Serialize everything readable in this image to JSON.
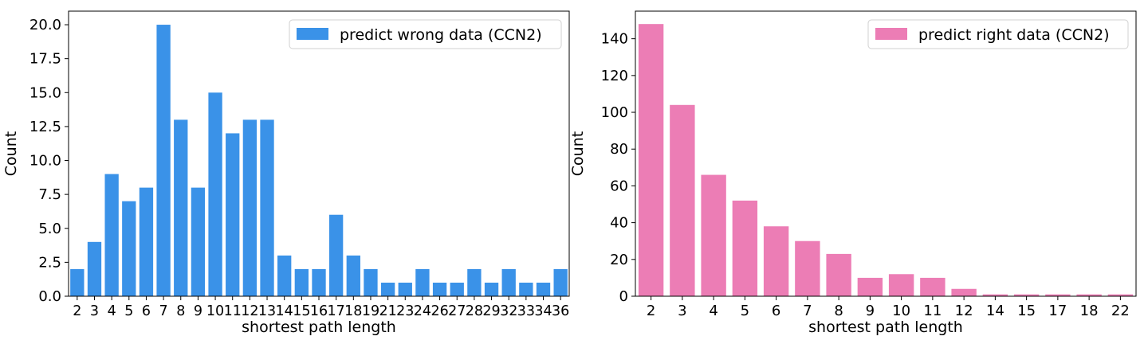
{
  "chart_data": [
    {
      "type": "bar",
      "xlabel": "shortest path length",
      "ylabel": "Count",
      "legend": {
        "label": "predict wrong data (CCN2)",
        "placement": "top-right"
      },
      "color": "#3a92e8",
      "categories": [
        "2",
        "3",
        "4",
        "5",
        "6",
        "7",
        "8",
        "9",
        "10",
        "11",
        "12",
        "13",
        "14",
        "15",
        "16",
        "17",
        "18",
        "19",
        "21",
        "23",
        "24",
        "26",
        "27",
        "28",
        "29",
        "32",
        "33",
        "34",
        "36"
      ],
      "values": [
        2,
        4,
        9,
        7,
        8,
        20,
        13,
        8,
        15,
        12,
        13,
        13,
        3,
        2,
        2,
        6,
        3,
        2,
        1,
        1,
        2,
        1,
        1,
        2,
        1,
        2,
        1,
        1,
        2
      ],
      "ylim": [
        0,
        21
      ],
      "yticks": [
        "0.0",
        "2.5",
        "5.0",
        "7.5",
        "10.0",
        "12.5",
        "15.0",
        "17.5",
        "20.0"
      ],
      "grid": false
    },
    {
      "type": "bar",
      "xlabel": "shortest path length",
      "ylabel": "Count",
      "legend": {
        "label": "predict right data (CCN2)",
        "placement": "top-right"
      },
      "color": "#ec7db5",
      "categories": [
        "2",
        "3",
        "4",
        "5",
        "6",
        "7",
        "8",
        "9",
        "10",
        "11",
        "12",
        "14",
        "15",
        "17",
        "18",
        "22"
      ],
      "values": [
        148,
        104,
        66,
        52,
        38,
        30,
        23,
        10,
        12,
        10,
        4,
        1,
        1,
        1,
        1,
        1
      ],
      "ylim": [
        0,
        155
      ],
      "yticks": [
        "0",
        "20",
        "40",
        "60",
        "80",
        "100",
        "120",
        "140"
      ],
      "grid": false
    }
  ]
}
